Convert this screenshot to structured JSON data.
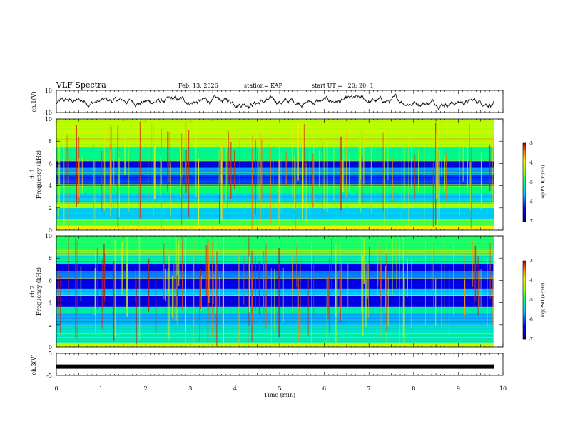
{
  "header": {
    "title": "VLF Spectra",
    "date": "Feb. 13, 2026",
    "station": "station= KAP",
    "start": "start UT =   20: 20: 1"
  },
  "chart_data": [
    {
      "type": "line",
      "name": "ch1-waveform",
      "ylabel": "ch.1(V)",
      "ylim": [
        -10,
        10
      ],
      "ytick_labels": [
        "10",
        "-10"
      ],
      "xlim": [
        0,
        10
      ],
      "x_extent_min": [
        0,
        9.8
      ],
      "description_series": "noisy voltage trace roughly between -8 and 6 V"
    },
    {
      "type": "heatmap",
      "name": "ch1-spectrogram",
      "ylabel_line1": "ch.1",
      "ylabel_line2": "Frequency (kHz)",
      "ylim": [
        0,
        10
      ],
      "ytick_labels": [
        "0",
        "2",
        "4",
        "6",
        "8",
        "10"
      ],
      "xlim": [
        0,
        10
      ],
      "time_extent_min": [
        0,
        9.8
      ],
      "bands_khz": [
        {
          "lo": 0.0,
          "hi": 0.4,
          "level": -4.0
        },
        {
          "lo": 0.4,
          "hi": 1.0,
          "level": -4.8
        },
        {
          "lo": 1.0,
          "hi": 2.0,
          "level": -5.6
        },
        {
          "lo": 2.0,
          "hi": 2.4,
          "level": -4.4
        },
        {
          "lo": 2.4,
          "hi": 3.3,
          "level": -5.5
        },
        {
          "lo": 3.3,
          "hi": 4.0,
          "level": -5.0
        },
        {
          "lo": 4.0,
          "hi": 5.0,
          "level": -6.2
        },
        {
          "lo": 5.0,
          "hi": 5.6,
          "level": -5.8
        },
        {
          "lo": 5.6,
          "hi": 6.2,
          "level": -6.6
        },
        {
          "lo": 6.2,
          "hi": 7.5,
          "level": -5.1
        },
        {
          "lo": 7.5,
          "hi": 10.0,
          "level": -4.3
        }
      ],
      "colorbar": {
        "label": "log(PSD)(V²/Hz)",
        "min": -7,
        "max": -3,
        "tick_labels": [
          "-3",
          "-4",
          "-5",
          "-6",
          "-7"
        ]
      }
    },
    {
      "type": "heatmap",
      "name": "ch2-spectrogram",
      "ylabel_line1": "ch.2",
      "ylabel_line2": "Frequency (kHz)",
      "ylim": [
        0,
        10
      ],
      "ytick_labels": [
        "0",
        "2",
        "4",
        "6",
        "8",
        "10"
      ],
      "xlim": [
        0,
        10
      ],
      "time_extent_min": [
        0,
        9.8
      ],
      "bands_khz": [
        {
          "lo": 0.0,
          "hi": 0.4,
          "level": -4.3
        },
        {
          "lo": 0.4,
          "hi": 2.0,
          "level": -5.3
        },
        {
          "lo": 2.0,
          "hi": 3.0,
          "level": -5.7
        },
        {
          "lo": 3.0,
          "hi": 3.6,
          "level": -5.2
        },
        {
          "lo": 3.6,
          "hi": 4.6,
          "level": -6.5
        },
        {
          "lo": 4.6,
          "hi": 5.2,
          "level": -5.6
        },
        {
          "lo": 5.2,
          "hi": 6.2,
          "level": -6.5
        },
        {
          "lo": 6.2,
          "hi": 6.8,
          "level": -5.9
        },
        {
          "lo": 6.8,
          "hi": 7.5,
          "level": -6.5
        },
        {
          "lo": 7.5,
          "hi": 8.5,
          "level": -5.2
        },
        {
          "lo": 8.5,
          "hi": 10.0,
          "level": -4.9
        }
      ],
      "colorbar": {
        "label": "log(PSD)(V²/Hz)",
        "min": -7,
        "max": -3,
        "tick_labels": [
          "-3",
          "-4",
          "-5",
          "-6",
          "-7"
        ]
      }
    },
    {
      "type": "line",
      "name": "ch3-signal",
      "ylabel": "ch.3(V)",
      "ylim": [
        -5,
        5
      ],
      "ytick_labels": [
        "5",
        "-5"
      ],
      "xlim": [
        0,
        10
      ],
      "level_v": -1.0,
      "time_extent_min": [
        0,
        9.8
      ]
    }
  ],
  "xaxis": {
    "label": "Time (min)",
    "tick_labels": [
      "0",
      "1",
      "2",
      "3",
      "4",
      "5",
      "6",
      "7",
      "8",
      "9",
      "10"
    ]
  }
}
